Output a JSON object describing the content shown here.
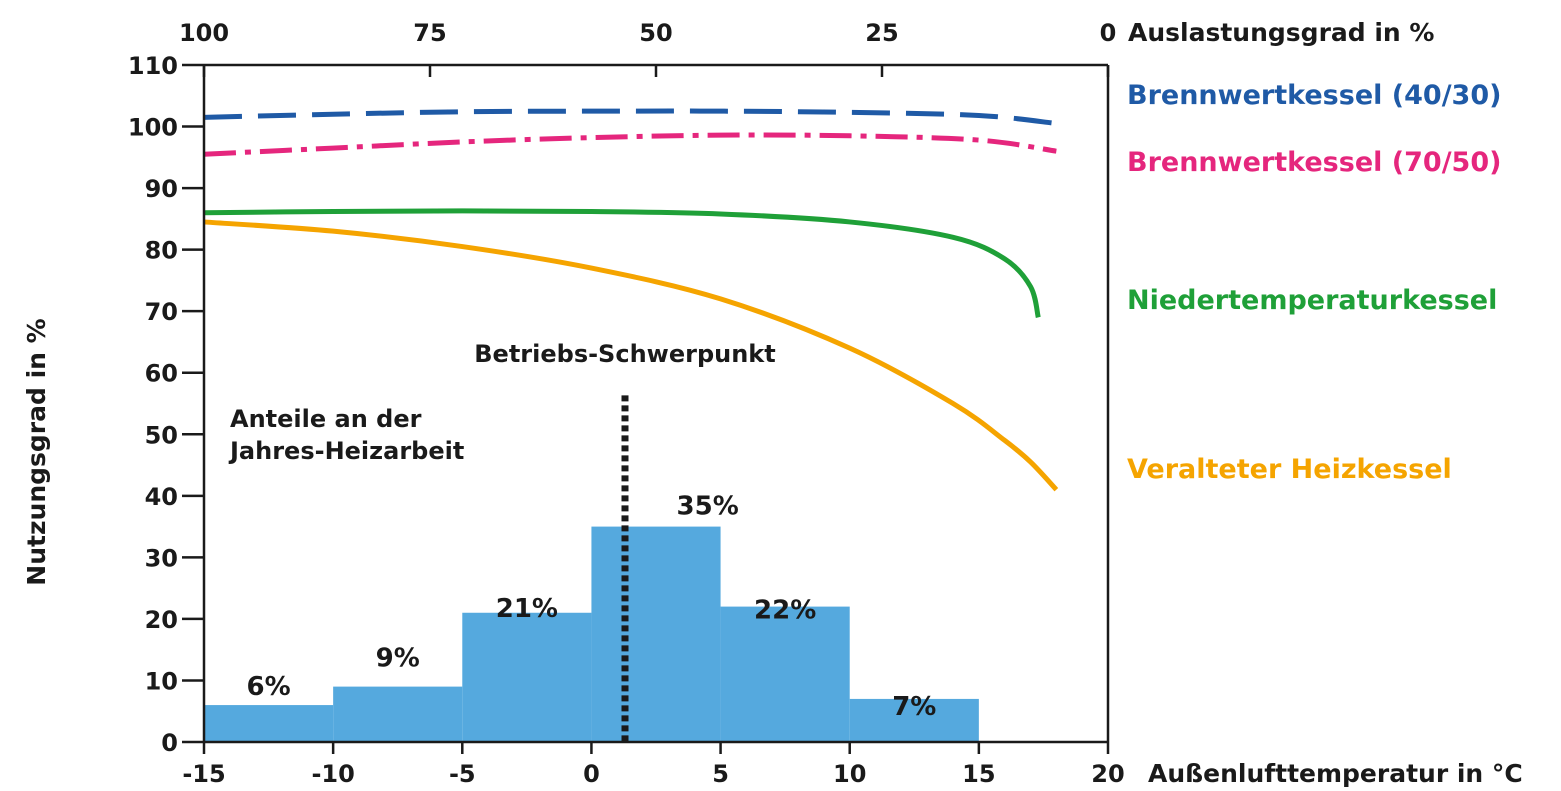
{
  "chart_data": {
    "type": "line",
    "xlabel": "Außenlufttemperatur in °C",
    "ylabel": "Nutzungsgrad in %",
    "x2label": "Auslastungsgrad in %",
    "xlim": [
      -15,
      20
    ],
    "ylim": [
      0,
      110
    ],
    "x_ticks": [
      -15,
      -10,
      -5,
      0,
      5,
      10,
      15,
      20
    ],
    "y_ticks": [
      0,
      10,
      20,
      30,
      40,
      50,
      60,
      70,
      80,
      90,
      100,
      110
    ],
    "x2_ticks": [
      100,
      75,
      50,
      25,
      0
    ],
    "grid": false,
    "legend": "right, labels beside curves",
    "series": [
      {
        "name": "Brennwertkessel (40/30)",
        "color": "#1f5aa6",
        "style": "dashed",
        "x": [
          -15,
          -10,
          -5,
          0,
          5,
          10,
          15,
          18
        ],
        "y": [
          101.5,
          102,
          102.4,
          102.5,
          102.5,
          102.3,
          101.8,
          100.5
        ]
      },
      {
        "name": "Brennwertkessel (70/50)",
        "color": "#e5267d",
        "style": "dash-dot",
        "x": [
          -15,
          -10,
          -5,
          0,
          5,
          10,
          15,
          18
        ],
        "y": [
          95.5,
          96.5,
          97.5,
          98.2,
          98.6,
          98.5,
          97.8,
          96
        ]
      },
      {
        "name": "Niedertemperaturkessel",
        "color": "#1fa038",
        "style": "solid",
        "x": [
          -15,
          -10,
          -5,
          0,
          5,
          10,
          14,
          16,
          17,
          17.3
        ],
        "y": [
          86,
          86.2,
          86.3,
          86.2,
          85.8,
          84.5,
          82,
          78.5,
          74,
          69
        ]
      },
      {
        "name": "Veralteter Heizkessel",
        "color": "#f5a400",
        "style": "solid",
        "x": [
          -15,
          -10,
          -5,
          0,
          5,
          10,
          14,
          16,
          17,
          18
        ],
        "y": [
          84.5,
          83,
          80.5,
          77,
          72,
          64,
          55,
          49,
          45.5,
          41
        ]
      }
    ],
    "histogram": {
      "title": "Anteile an der\nJahres-Heizarbeit",
      "color": "#55a9de",
      "bins": [
        {
          "from": -15,
          "to": -10,
          "value": 6,
          "label": "6%"
        },
        {
          "from": -10,
          "to": -5,
          "value": 9,
          "label": "9%"
        },
        {
          "from": -5,
          "to": 0,
          "value": 21,
          "label": "21%"
        },
        {
          "from": 0,
          "to": 5,
          "value": 35,
          "label": "35%"
        },
        {
          "from": 5,
          "to": 10,
          "value": 22,
          "label": "22%"
        },
        {
          "from": 10,
          "to": 15,
          "value": 7,
          "label": "7%"
        }
      ]
    },
    "marker": {
      "label": "Betriebs-Schwerpunkt",
      "x": 1.3,
      "y_top": 56
    }
  }
}
